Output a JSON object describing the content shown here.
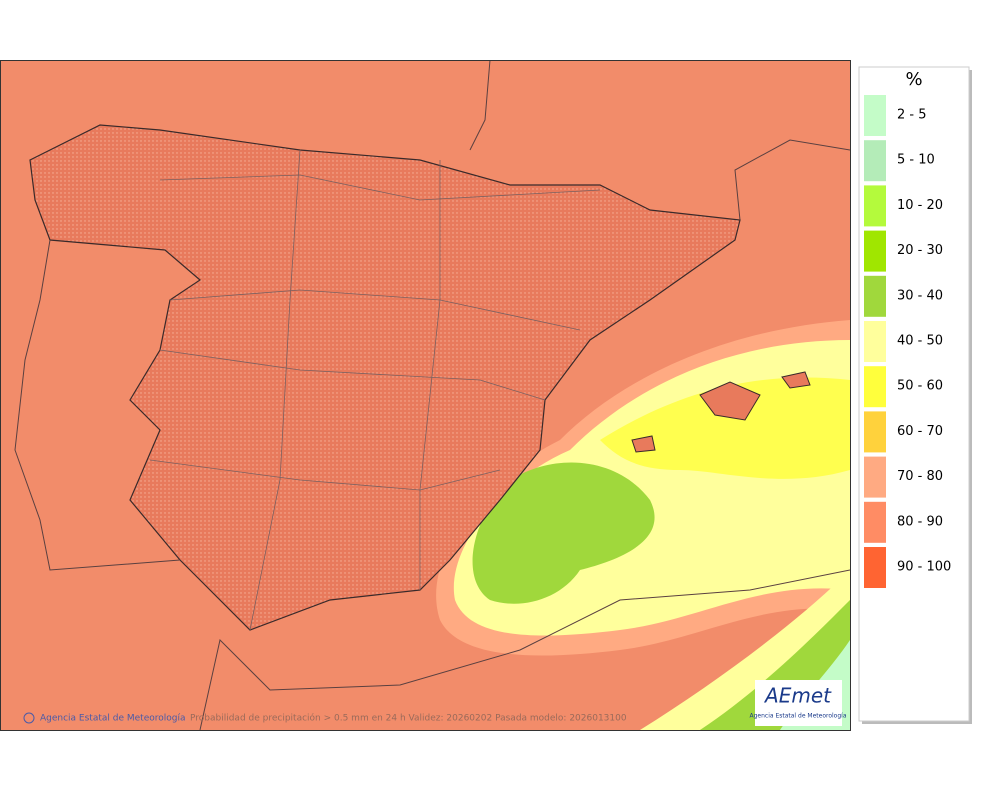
{
  "map": {
    "footer": {
      "agency": "Agencia Estatal de Meteorología",
      "caption": "Probabilidad de precipitación > 0.5 mm en 24 h Validez: 20260202 Pasada modelo: 2026013100"
    },
    "logo": {
      "name": "AEmet",
      "subtitle": "Agencia Estatal de Meteorología"
    },
    "legend": {
      "title": "%",
      "items": [
        {
          "label": "2 - 5",
          "color": "#c4fcc8"
        },
        {
          "label": "5 - 10",
          "color": "#b4ecb8"
        },
        {
          "label": "10 - 20",
          "color": "#b4fa3c"
        },
        {
          "label": "20 - 30",
          "color": "#a0e600"
        },
        {
          "label": "30 - 40",
          "color": "#a0d83c"
        },
        {
          "label": "40 - 50",
          "color": "#ffff9c"
        },
        {
          "label": "50 - 60",
          "color": "#ffff3c"
        },
        {
          "label": "60 - 70",
          "color": "#ffd23c"
        },
        {
          "label": "70 - 80",
          "color": "#ffaa82"
        },
        {
          "label": "80 - 90",
          "color": "#ff8c64"
        },
        {
          "label": "90 - 100",
          "color": "#ff6432"
        }
      ]
    }
  }
}
